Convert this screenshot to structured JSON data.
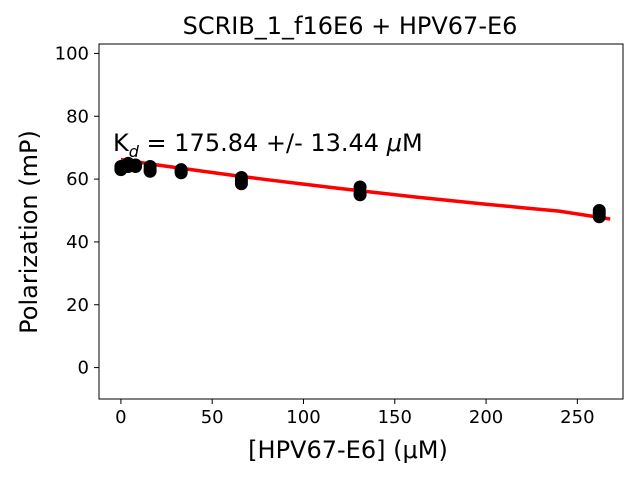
{
  "chart_data": {
    "type": "scatter",
    "title": "SCRIB_1_f16E6 + HPV67-E6",
    "xlabel": "[HPV67-E6] (μM)",
    "ylabel": "Polarization (mP)",
    "xlim": [
      -12,
      275
    ],
    "ylim": [
      -10,
      103
    ],
    "xticks": [
      0,
      50,
      100,
      150,
      200,
      250
    ],
    "yticks": [
      0,
      20,
      40,
      60,
      80,
      100
    ],
    "grid": false,
    "annotation": {
      "prefix": "K",
      "subscript": "d",
      "text": " = 175.84 +/- 13.44 ",
      "unit_symbol": "μ",
      "unit": "M"
    },
    "points": {
      "color": "#000000",
      "x": [
        0,
        0,
        0,
        4,
        4,
        4,
        8,
        8,
        16,
        16,
        16,
        33,
        33,
        33,
        66,
        66,
        66,
        131,
        131,
        131,
        262,
        262,
        262
      ],
      "y": [
        63,
        63.5,
        64,
        64,
        64.5,
        65,
        64,
        64.5,
        62.5,
        63,
        64,
        62,
        62.5,
        63,
        58.5,
        59.5,
        60.5,
        55,
        55.5,
        57.5,
        48,
        49,
        50
      ]
    },
    "fit": {
      "color": "#ff0000",
      "x": [
        0,
        20,
        40,
        60,
        80,
        100,
        120,
        140,
        160,
        180,
        200,
        220,
        240,
        268
      ],
      "y": [
        66.2,
        64.5,
        62.9,
        61.3,
        59.8,
        58.4,
        57.0,
        55.7,
        54.4,
        53.2,
        52.0,
        50.9,
        49.8,
        47.3
      ]
    }
  }
}
